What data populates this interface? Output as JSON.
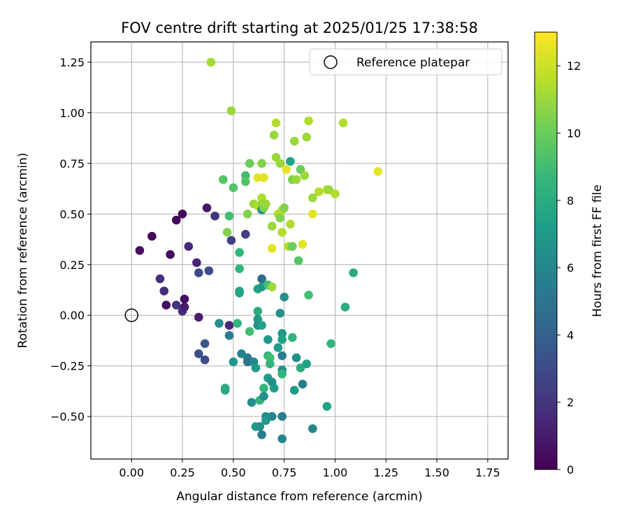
{
  "chart_data": {
    "type": "scatter",
    "title": "FOV centre drift starting at 2025/01/25 17:38:58",
    "xlabel": "Angular distance from reference (arcmin)",
    "ylabel": "Rotation from reference (arcmin)",
    "xlim": [
      -0.2,
      1.85
    ],
    "ylim": [
      -0.71,
      1.35
    ],
    "xticks": [
      0.0,
      0.25,
      0.5,
      0.75,
      1.0,
      1.25,
      1.5,
      1.75
    ],
    "xtick_labels": [
      "0.00",
      "0.25",
      "0.50",
      "0.75",
      "1.00",
      "1.25",
      "1.50",
      "1.75"
    ],
    "yticks": [
      -0.5,
      -0.25,
      0.0,
      0.25,
      0.5,
      0.75,
      1.0,
      1.25
    ],
    "ytick_labels": [
      "−0.50",
      "−0.25",
      "0.00",
      "0.25",
      "0.50",
      "0.75",
      "1.00",
      "1.25"
    ],
    "grid": true,
    "legend": {
      "position": "top-right",
      "entries": [
        {
          "label": "Reference platepar",
          "marker": "open-circle"
        }
      ]
    },
    "reference_point": {
      "x": 0.0,
      "y": 0.0
    },
    "colorbar": {
      "label": "Hours from first FF file",
      "colormap": "viridis",
      "range": [
        0,
        13
      ],
      "ticks": [
        0,
        2,
        4,
        6,
        8,
        10,
        12
      ],
      "tick_labels": [
        "0",
        "2",
        "4",
        "6",
        "8",
        "10",
        "12"
      ]
    },
    "colormap_stops": [
      "#440154",
      "#482878",
      "#3e4989",
      "#31688e",
      "#26828e",
      "#1f9e89",
      "#35b779",
      "#6ece58",
      "#b5de2b",
      "#fde725"
    ],
    "points": [
      {
        "x": 0.04,
        "y": 0.32,
        "c": 0.5
      },
      {
        "x": 0.1,
        "y": 0.39,
        "c": 0.3
      },
      {
        "x": 0.14,
        "y": 0.18,
        "c": 1.8
      },
      {
        "x": 0.16,
        "y": 0.12,
        "c": 1.7
      },
      {
        "x": 0.17,
        "y": 0.05,
        "c": 0.5
      },
      {
        "x": 0.19,
        "y": 0.3,
        "c": 0.4
      },
      {
        "x": 0.22,
        "y": 0.47,
        "c": 0.2
      },
      {
        "x": 0.22,
        "y": 0.05,
        "c": 2.0
      },
      {
        "x": 0.25,
        "y": 0.5,
        "c": 0.3
      },
      {
        "x": 0.25,
        "y": 0.02,
        "c": 1.7
      },
      {
        "x": 0.26,
        "y": 0.04,
        "c": 1.0
      },
      {
        "x": 0.26,
        "y": 0.08,
        "c": 0.5
      },
      {
        "x": 0.28,
        "y": 0.34,
        "c": 1.5
      },
      {
        "x": 0.32,
        "y": 0.26,
        "c": 1.3
      },
      {
        "x": 0.33,
        "y": 0.21,
        "c": 3.0
      },
      {
        "x": 0.33,
        "y": -0.01,
        "c": 1.0
      },
      {
        "x": 0.33,
        "y": -0.19,
        "c": 3.2
      },
      {
        "x": 0.36,
        "y": -0.14,
        "c": 3.5
      },
      {
        "x": 0.36,
        "y": -0.22,
        "c": 3.0
      },
      {
        "x": 0.37,
        "y": 0.53,
        "c": 0.8
      },
      {
        "x": 0.38,
        "y": 0.22,
        "c": 3.0
      },
      {
        "x": 0.39,
        "y": 1.25,
        "c": 11.2
      },
      {
        "x": 0.41,
        "y": 0.49,
        "c": 2.0
      },
      {
        "x": 0.43,
        "y": -0.04,
        "c": 6.5
      },
      {
        "x": 0.45,
        "y": 0.67,
        "c": 9.5
      },
      {
        "x": 0.46,
        "y": -0.36,
        "c": 8.0
      },
      {
        "x": 0.46,
        "y": -0.37,
        "c": 7.8
      },
      {
        "x": 0.47,
        "y": 0.41,
        "c": 10.5
      },
      {
        "x": 0.48,
        "y": 0.49,
        "c": 9.0
      },
      {
        "x": 0.48,
        "y": -0.05,
        "c": 1.5
      },
      {
        "x": 0.48,
        "y": -0.1,
        "c": 5.5
      },
      {
        "x": 0.49,
        "y": 0.37,
        "c": 2.5
      },
      {
        "x": 0.49,
        "y": 1.01,
        "c": 11.0
      },
      {
        "x": 0.5,
        "y": 0.63,
        "c": 9.5
      },
      {
        "x": 0.5,
        "y": -0.23,
        "c": 6.8
      },
      {
        "x": 0.52,
        "y": -0.04,
        "c": 8.5
      },
      {
        "x": 0.53,
        "y": 0.31,
        "c": 8.5
      },
      {
        "x": 0.53,
        "y": 0.23,
        "c": 8.5
      },
      {
        "x": 0.53,
        "y": 0.12,
        "c": 8.0
      },
      {
        "x": 0.53,
        "y": 0.11,
        "c": 7.5
      },
      {
        "x": 0.54,
        "y": -0.19,
        "c": 5.8
      },
      {
        "x": 0.56,
        "y": 0.69,
        "c": 9.0
      },
      {
        "x": 0.56,
        "y": 0.66,
        "c": 9.5
      },
      {
        "x": 0.56,
        "y": 0.4,
        "c": 2.5
      },
      {
        "x": 0.57,
        "y": 0.5,
        "c": 10.5
      },
      {
        "x": 0.57,
        "y": -0.21,
        "c": 5.5
      },
      {
        "x": 0.57,
        "y": -0.23,
        "c": 5.0
      },
      {
        "x": 0.58,
        "y": 0.75,
        "c": 10.0
      },
      {
        "x": 0.58,
        "y": -0.08,
        "c": 9.0
      },
      {
        "x": 0.59,
        "y": -0.43,
        "c": 6.5
      },
      {
        "x": 0.6,
        "y": 0.55,
        "c": 11.0
      },
      {
        "x": 0.6,
        "y": -0.23,
        "c": 6.0
      },
      {
        "x": 0.61,
        "y": -0.26,
        "c": 7.0
      },
      {
        "x": 0.61,
        "y": -0.55,
        "c": 7.0
      },
      {
        "x": 0.62,
        "y": 0.68,
        "c": 12.5
      },
      {
        "x": 0.62,
        "y": 0.54,
        "c": 11.5
      },
      {
        "x": 0.62,
        "y": 0.13,
        "c": 7.5
      },
      {
        "x": 0.62,
        "y": 0.02,
        "c": 8.0
      },
      {
        "x": 0.62,
        "y": -0.02,
        "c": 7.0
      },
      {
        "x": 0.62,
        "y": -0.05,
        "c": 6.5
      },
      {
        "x": 0.63,
        "y": -0.42,
        "c": 8.5
      },
      {
        "x": 0.63,
        "y": -0.55,
        "c": 6.5
      },
      {
        "x": 0.64,
        "y": 0.75,
        "c": 10.5
      },
      {
        "x": 0.64,
        "y": 0.58,
        "c": 11.5
      },
      {
        "x": 0.64,
        "y": 0.55,
        "c": 11.0
      },
      {
        "x": 0.64,
        "y": 0.52,
        "c": 6.5
      },
      {
        "x": 0.64,
        "y": 0.18,
        "c": 4.5
      },
      {
        "x": 0.64,
        "y": 0.14,
        "c": 7.0
      },
      {
        "x": 0.64,
        "y": -0.05,
        "c": 7.5
      },
      {
        "x": 0.64,
        "y": -0.59,
        "c": 5.5
      },
      {
        "x": 0.65,
        "y": 0.68,
        "c": 12.5
      },
      {
        "x": 0.65,
        "y": 0.53,
        "c": 10.5
      },
      {
        "x": 0.65,
        "y": -0.36,
        "c": 8.5
      },
      {
        "x": 0.65,
        "y": -0.4,
        "c": 6.5
      },
      {
        "x": 0.66,
        "y": 0.55,
        "c": 11.0
      },
      {
        "x": 0.66,
        "y": -0.5,
        "c": 6.5
      },
      {
        "x": 0.66,
        "y": -0.52,
        "c": 7.0
      },
      {
        "x": 0.67,
        "y": 0.15,
        "c": 9.0
      },
      {
        "x": 0.67,
        "y": -0.12,
        "c": 7.0
      },
      {
        "x": 0.67,
        "y": -0.2,
        "c": 8.5
      },
      {
        "x": 0.67,
        "y": -0.31,
        "c": 7.0
      },
      {
        "x": 0.68,
        "y": -0.21,
        "c": 9.0
      },
      {
        "x": 0.68,
        "y": -0.24,
        "c": 8.5
      },
      {
        "x": 0.69,
        "y": 0.44,
        "c": 11.0
      },
      {
        "x": 0.69,
        "y": 0.14,
        "c": 11.0
      },
      {
        "x": 0.69,
        "y": 0.33,
        "c": 12.5
      },
      {
        "x": 0.69,
        "y": -0.33,
        "c": 6.5
      },
      {
        "x": 0.69,
        "y": -0.5,
        "c": 6.0
      },
      {
        "x": 0.7,
        "y": 0.89,
        "c": 11.0
      },
      {
        "x": 0.7,
        "y": -0.36,
        "c": 7.0
      },
      {
        "x": 0.71,
        "y": 0.95,
        "c": 11.5
      },
      {
        "x": 0.71,
        "y": 0.78,
        "c": 11.0
      },
      {
        "x": 0.72,
        "y": 0.5,
        "c": 11.5
      },
      {
        "x": 0.72,
        "y": -0.16,
        "c": 7.0
      },
      {
        "x": 0.73,
        "y": 0.75,
        "c": 11.0
      },
      {
        "x": 0.73,
        "y": 0.48,
        "c": 10.5
      },
      {
        "x": 0.73,
        "y": 0.01,
        "c": 6.5
      },
      {
        "x": 0.74,
        "y": 0.52,
        "c": 11.5
      },
      {
        "x": 0.74,
        "y": 0.41,
        "c": 11.5
      },
      {
        "x": 0.74,
        "y": -0.09,
        "c": 7.0
      },
      {
        "x": 0.74,
        "y": -0.12,
        "c": 7.5
      },
      {
        "x": 0.74,
        "y": -0.2,
        "c": 5.5
      },
      {
        "x": 0.74,
        "y": -0.27,
        "c": 6.5
      },
      {
        "x": 0.74,
        "y": -0.29,
        "c": 8.5
      },
      {
        "x": 0.74,
        "y": -0.5,
        "c": 5.5
      },
      {
        "x": 0.74,
        "y": -0.61,
        "c": 6.0
      },
      {
        "x": 0.75,
        "y": 0.53,
        "c": 10.5
      },
      {
        "x": 0.75,
        "y": 0.09,
        "c": 6.5
      },
      {
        "x": 0.76,
        "y": 0.72,
        "c": 12.5
      },
      {
        "x": 0.77,
        "y": 0.34,
        "c": 11.5
      },
      {
        "x": 0.78,
        "y": 0.76,
        "c": 7.5
      },
      {
        "x": 0.78,
        "y": 0.45,
        "c": 11.5
      },
      {
        "x": 0.79,
        "y": 0.67,
        "c": 10.5
      },
      {
        "x": 0.79,
        "y": 0.34,
        "c": 10.0
      },
      {
        "x": 0.79,
        "y": -0.11,
        "c": 8.5
      },
      {
        "x": 0.8,
        "y": 0.86,
        "c": 11.0
      },
      {
        "x": 0.8,
        "y": -0.37,
        "c": 7.0
      },
      {
        "x": 0.81,
        "y": 0.67,
        "c": 11.0
      },
      {
        "x": 0.81,
        "y": -0.21,
        "c": 6.5
      },
      {
        "x": 0.82,
        "y": 0.27,
        "c": 9.5
      },
      {
        "x": 0.83,
        "y": 0.72,
        "c": 10.0
      },
      {
        "x": 0.83,
        "y": -0.26,
        "c": 8.0
      },
      {
        "x": 0.84,
        "y": 0.35,
        "c": 12.5
      },
      {
        "x": 0.84,
        "y": -0.34,
        "c": 5.5
      },
      {
        "x": 0.85,
        "y": 0.69,
        "c": 11.0
      },
      {
        "x": 0.86,
        "y": 0.88,
        "c": 11.0
      },
      {
        "x": 0.86,
        "y": -0.24,
        "c": 7.5
      },
      {
        "x": 0.87,
        "y": 0.96,
        "c": 11.5
      },
      {
        "x": 0.87,
        "y": 0.1,
        "c": 9.0
      },
      {
        "x": 0.89,
        "y": 0.58,
        "c": 11.0
      },
      {
        "x": 0.89,
        "y": 0.5,
        "c": 12.5
      },
      {
        "x": 0.89,
        "y": -0.56,
        "c": 6.0
      },
      {
        "x": 0.92,
        "y": 0.61,
        "c": 11.5
      },
      {
        "x": 0.96,
        "y": 0.62,
        "c": 11.5
      },
      {
        "x": 0.96,
        "y": -0.45,
        "c": 7.5
      },
      {
        "x": 0.97,
        "y": 0.62,
        "c": 11.0
      },
      {
        "x": 0.98,
        "y": -0.14,
        "c": 8.5
      },
      {
        "x": 1.0,
        "y": 0.6,
        "c": 11.5
      },
      {
        "x": 1.04,
        "y": 0.95,
        "c": 11.5
      },
      {
        "x": 1.05,
        "y": 0.04,
        "c": 8.0
      },
      {
        "x": 1.09,
        "y": 0.21,
        "c": 8.0
      },
      {
        "x": 1.21,
        "y": 0.71,
        "c": 12.5
      }
    ]
  }
}
